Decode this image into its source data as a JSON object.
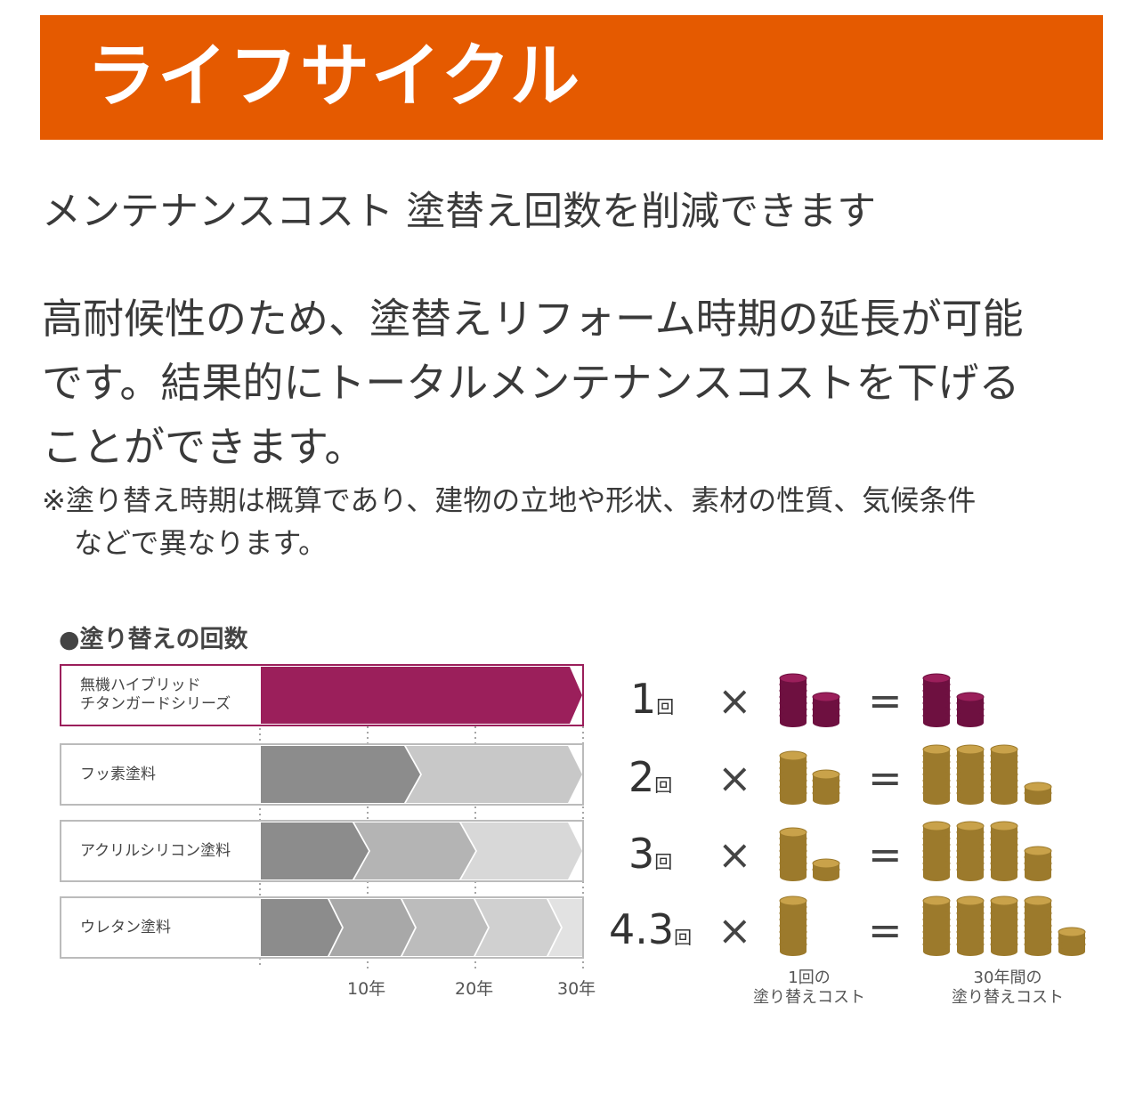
{
  "header": {
    "title": "ライフサイクル"
  },
  "subtitle": "メンテナンスコスト 塗替え回数を削減できます",
  "body": {
    "line1": "高耐候性のため、塗替えリフォーム時期の延長が可能",
    "line2": "です。結果的にトータルメンテナンスコストを下げる",
    "line3": "ことができます。"
  },
  "note": {
    "line1": "※塗り替え時期は概算であり、建物の立地や形状、素材の性質、気候条件",
    "line2": "などで異なります。"
  },
  "figure": {
    "title": "●塗り替えの回数",
    "rows": [
      {
        "label_line1": "無機ハイブリッド",
        "label_line2": "チタンガードシリーズ",
        "count": "1",
        "unit": "回"
      },
      {
        "label_line1": "フッ素塗料",
        "label_line2": "",
        "count": "2",
        "unit": "回"
      },
      {
        "label_line1": "アクリルシリコン塗料",
        "label_line2": "",
        "count": "3",
        "unit": "回"
      },
      {
        "label_line1": "ウレタン塗料",
        "label_line2": "",
        "count": "4.3",
        "unit": "回"
      }
    ],
    "ticks": [
      "10年",
      "20年",
      "30年"
    ],
    "times_symbol": "×",
    "equals_symbol": "=",
    "caption_left_line1": "1回の",
    "caption_left_line2": "塗り替えコスト",
    "caption_right_line1": "30年間の",
    "caption_right_line2": "塗り替えコスト",
    "colors": {
      "accent": "#e55a00",
      "primary_bar": "#9b1f5b",
      "coin_gold": "#c9a24a",
      "coin_purple": "#9b1f5b"
    }
  }
}
